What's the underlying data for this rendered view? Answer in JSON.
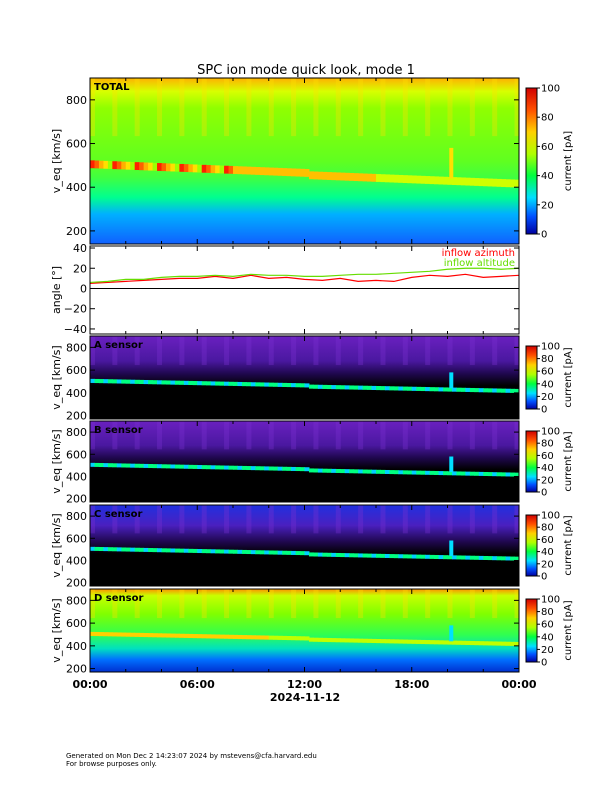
{
  "title": "SPC ion mode quick look, mode 1",
  "footer": {
    "line1": "Generated on Mon Dec  2 14:23:07 2024 by mstevens@cfa.harvard.edu",
    "line2": "For browse purposes only."
  },
  "x_axis": {
    "date_label": "2024-11-12",
    "tick_labels": [
      "00:00",
      "06:00",
      "12:00",
      "18:00",
      "00:00"
    ],
    "range_hours": [
      0,
      24
    ]
  },
  "colorbar": {
    "label": "current [pA]",
    "ticks": [
      "0",
      "20",
      "40",
      "60",
      "80",
      "100"
    ],
    "range": [
      0,
      100
    ],
    "colormap": "rainbow (blue-cyan-green-yellow-red)"
  },
  "chart_data": [
    {
      "type": "heatmap",
      "panel": "TOTAL",
      "label": "TOTAL",
      "ylabel": "v_eq [km/s]",
      "ylim": [
        140,
        900
      ],
      "yticks": [
        "200",
        "400",
        "600",
        "800"
      ],
      "zlim": [
        0,
        100
      ],
      "colorbar": true,
      "description_values": {
        "dominant_band_v_kms_start": 500,
        "dominant_band_v_kms_end": 440,
        "peak_current_pA": 90,
        "background_current_pA": 45,
        "low_v_current_pA": 10
      }
    },
    {
      "type": "line",
      "panel": "angle",
      "ylabel": "angle [°]",
      "ylim": [
        -45,
        42
      ],
      "yticks": [
        "40",
        "20",
        "0",
        "−20",
        "−40"
      ],
      "zero_line": true,
      "x": [
        0,
        1,
        2,
        3,
        4,
        5,
        6,
        7,
        8,
        9,
        10,
        11,
        12,
        13,
        14,
        15,
        16,
        17,
        18,
        19,
        20,
        21,
        22,
        23,
        24
      ],
      "series": [
        {
          "name": "inflow azimuth",
          "color": "#ff0000",
          "values": [
            5,
            6,
            7,
            8,
            9,
            10,
            10,
            12,
            10,
            13,
            10,
            11,
            9,
            8,
            10,
            7,
            8,
            7,
            11,
            13,
            12,
            14,
            11,
            12,
            13
          ]
        },
        {
          "name": "inflow altitude",
          "color": "#66dd00",
          "values": [
            6,
            7,
            9,
            9,
            11,
            12,
            12,
            13,
            12,
            14,
            13,
            13,
            12,
            12,
            13,
            14,
            14,
            15,
            16,
            17,
            19,
            20,
            20,
            19,
            20
          ]
        }
      ]
    },
    {
      "type": "heatmap",
      "panel": "A sensor",
      "label": "A sensor",
      "ylabel": "v_eq [km/s]",
      "ylim": [
        170,
        900
      ],
      "yticks": [
        "200",
        "400",
        "600",
        "800"
      ],
      "zlim": [
        0,
        100
      ],
      "colorbar": true
    },
    {
      "type": "heatmap",
      "panel": "B sensor",
      "label": "B sensor",
      "ylabel": "v_eq [km/s]",
      "ylim": [
        170,
        900
      ],
      "yticks": [
        "200",
        "400",
        "600",
        "800"
      ],
      "zlim": [
        0,
        100
      ],
      "colorbar": true
    },
    {
      "type": "heatmap",
      "panel": "C sensor",
      "label": "C sensor",
      "ylabel": "v_eq [km/s]",
      "ylim": [
        170,
        900
      ],
      "yticks": [
        "200",
        "400",
        "600",
        "800"
      ],
      "zlim": [
        0,
        100
      ],
      "colorbar": true
    },
    {
      "type": "heatmap",
      "panel": "D sensor",
      "label": "D sensor",
      "ylabel": "v_eq [km/s]",
      "ylim": [
        170,
        900
      ],
      "yticks": [
        "200",
        "400",
        "600",
        "800"
      ],
      "zlim": [
        0,
        100
      ],
      "colorbar": true
    }
  ]
}
